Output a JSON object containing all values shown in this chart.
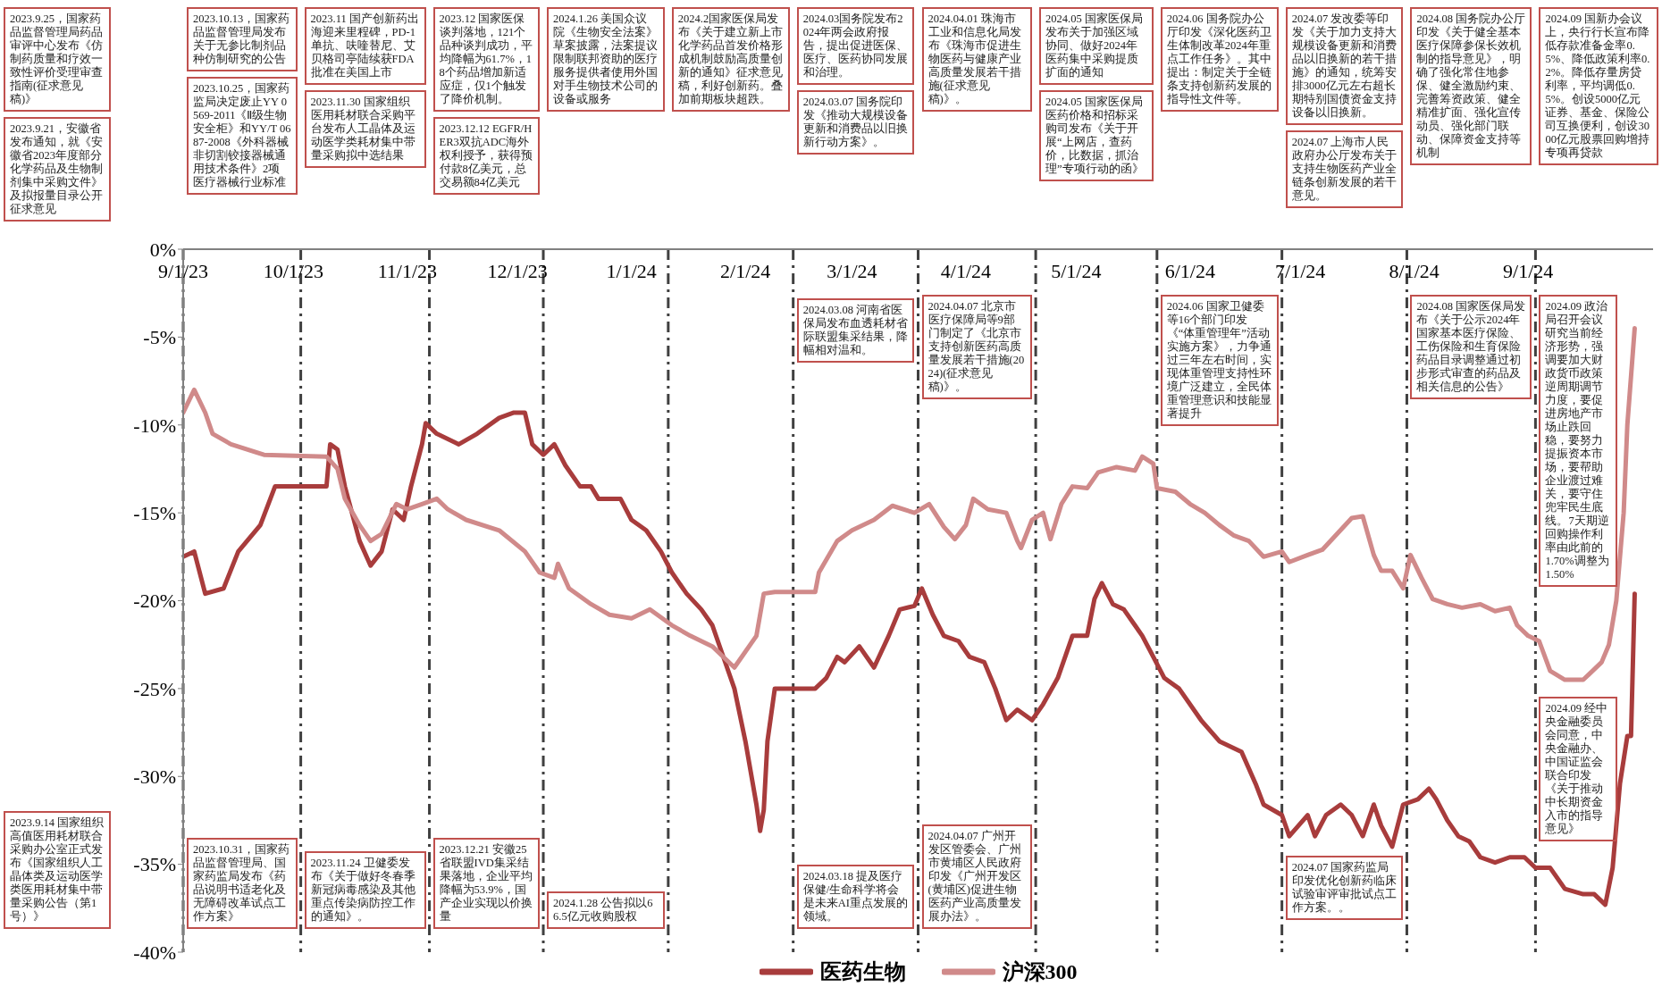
{
  "chart_data": {
    "type": "line",
    "xlim": [
      "2023-09-01",
      "2024-10-05"
    ],
    "xticks": [
      {
        "value": "2023-09-01",
        "label": "9/1/23"
      },
      {
        "value": "2023-10-01",
        "label": "10/1/23"
      },
      {
        "value": "2023-11-01",
        "label": "11/1/23"
      },
      {
        "value": "2023-12-01",
        "label": "12/1/23"
      },
      {
        "value": "2024-01-01",
        "label": "1/1/24"
      },
      {
        "value": "2024-02-01",
        "label": "2/1/24"
      },
      {
        "value": "2024-03-01",
        "label": "3/1/24"
      },
      {
        "value": "2024-04-01",
        "label": "4/1/24"
      },
      {
        "value": "2024-05-01",
        "label": "5/1/24"
      },
      {
        "value": "2024-06-01",
        "label": "6/1/24"
      },
      {
        "value": "2024-07-01",
        "label": "7/1/24"
      },
      {
        "value": "2024-08-01",
        "label": "8/1/24"
      },
      {
        "value": "2024-09-01",
        "label": "9/1/24"
      }
    ],
    "ylim": [
      -40,
      0
    ],
    "yticks": [
      {
        "value": -40,
        "label": "-40%"
      },
      {
        "value": -35,
        "label": "-35%"
      },
      {
        "value": -30,
        "label": "-30%"
      },
      {
        "value": -25,
        "label": "-25%"
      },
      {
        "value": -20,
        "label": "-20%"
      },
      {
        "value": -15,
        "label": "-15%"
      },
      {
        "value": -10,
        "label": "-10%"
      },
      {
        "value": -5,
        "label": "-5%"
      },
      {
        "value": 0,
        "label": "0%"
      }
    ],
    "grid": false,
    "legend": "bottom",
    "marker": "none",
    "line_style": "solid",
    "ref_lines": [
      {
        "axis": "x",
        "value": "2023-09-01",
        "color": "#404040",
        "line_style": "dashed"
      },
      {
        "axis": "x",
        "value": "2023-10-03",
        "color": "#404040",
        "line_style": "dashed"
      },
      {
        "axis": "x",
        "value": "2023-11-07",
        "color": "#404040",
        "line_style": "dashed"
      },
      {
        "axis": "x",
        "value": "2023-12-08",
        "color": "#404040",
        "line_style": "dashed"
      },
      {
        "axis": "x",
        "value": "2024-01-11",
        "color": "#404040",
        "line_style": "dashed"
      },
      {
        "axis": "x",
        "value": "2024-02-14",
        "color": "#404040",
        "line_style": "dashed"
      },
      {
        "axis": "x",
        "value": "2024-03-19",
        "color": "#404040",
        "line_style": "dashed"
      },
      {
        "axis": "x",
        "value": "2024-04-20",
        "color": "#404040",
        "line_style": "dashed"
      },
      {
        "axis": "x",
        "value": "2024-05-23",
        "color": "#404040",
        "line_style": "dashed"
      },
      {
        "axis": "x",
        "value": "2024-06-26",
        "color": "#404040",
        "line_style": "dashed"
      },
      {
        "axis": "x",
        "value": "2024-07-30",
        "color": "#404040",
        "line_style": "dashed"
      },
      {
        "axis": "x",
        "value": "2024-09-03",
        "color": "#404040",
        "line_style": "dashed"
      }
    ],
    "annotations": [
      "2023.9.25，国家药品监督管理局药品审评中心发布《仿制药质量和疗效一致性评价受理审查指南(征求意见稿)》",
      "2023.9.21，安徽省发布通知，就《安徽省2023年度部分化学药品及生物制剂集中采购文件》及拟报量目录公开征求意见",
      "2023.9.14 国家组织高值医用耗材联合采购办公室正式发布《国家组织人工晶体类及运动医学类医用耗材集中带量采购公告（第1号）》",
      "2023.10.13，国家药品监督管理局发布关于无参比制剂品种仿制研究的公告",
      "2023.10.25，国家药监局决定废止YY 0569-2011《Ⅱ级生物安全柜》和YY/T 0687-2008《外科器械非切割铰接器械通用技术条件》2项医疗器械行业标准",
      "2023.10.31，国家药品监督管理局、国家药监局发布《药品说明书适老化及无障碍改革试点工作方案》",
      "2023.11 国产创新药出海迎来里程碑，PD-1单抗、呋喹替尼、艾贝格司亭陆续获FDA批准在美国上市",
      "2023.11.30 国家组织医用耗材联合采购平台发布人工晶体及运动医学类耗材集中带量采购拟中选结果",
      "2023.11.24 卫健委发布《关于做好冬春季新冠病毒感染及其他重点传染病防控工作的通知》。",
      "2023.12 国家医保谈判落地，121个品种谈判成功，平均降幅为61.7%，18个药品增加新适应症，仅1个触发了降价机制。",
      "2023.12.12 EGFR/HER3双抗ADC海外权利授予，获得预付款8亿美元，总交易额84亿美元",
      "2023.12.21 安徽25省联盟IVD集采结果落地，企业平均降幅为53.9%，国产企业实现以价换量",
      "2024.1.26 美国众议院《生物安全法案》草案披露，法案提议限制联邦资助的医疗服务提供者使用外国对手生物技术公司的设备或服务",
      "2024.1.28 公告拟以66.5亿元收购股权",
      "2024.2国家医保局发布《关于建立新上市化学药品首发价格形成机制鼓励高质量创新的通知》征求意见稿，利好创新药。叠加前期板块超跌。",
      "2024.03国务院发布2024年两会政府报告，提出促进医保、医疗、医药协同发展和治理。",
      "2024.03.07 国务院印发《推动大规模设备更新和消费品以旧换新行动方案》。",
      "2024.03.08 河南省医保局发布血透耗材省际联盟集采结果，降幅相对温和。",
      "2024.03.18 提及医疗保健/生命科学将会是未来AI重点发展的领域。",
      "2024.04.01 珠海市工业和信息化局发布《珠海市促进生物医药与健康产业高质量发展若干措施(征求意见稿)》。",
      "2024.04.07 北京市医疗保障局等9部门制定了《北京市支持创新医药高质量发展若干措施(2024)(征求意见稿)》。",
      "2024.04.07 广州开发区管委会、广州市黄埔区人民政府印发《广州开发区(黄埔区)促进生物医药产业高质量发展办法》。",
      "2024.05 国家医保局发布关于加强区域协同、做好2024年医药集中采购提质扩面的通知",
      "2024.05 国家医保局医药价格和招标采购司发布《关于开展“上网店，查药价，比数据，抓治理”专项行动的函》",
      "2024.06 国务院办公厅印发《深化医药卫生体制改革2024年重点工作任务》。其中提出：制定关于全链条支持创新药发展的指导性文件等。",
      "2024.06 国家卫健委等16个部门印发《“体重管理年”活动实施方案》，力争通过三年左右时间，实现体重管理支持性环境广泛建立，全民体重管理意识和技能显著提升",
      "2024.07 发改委等印发《关于加力支持大规模设备更新和消费品以旧换新的若干措施》的通知，统筹安排3000亿元左右超长期特别国债资金支持设备以旧换新。",
      "2024.07 上海市人民政府办公厅发布关于支持生物医药产业全链条创新发展的若干意见。",
      "2024.07 国家药监局印发优化创新药临床试验审评审批试点工作方案。。",
      "2024.08 国务院办公厅印发《关于健全基本医疗保障参保长效机制的指导意见》，明确了强化常住地参保、健全激励约束、完善筹资政策、健全精准扩面、强化宣传动员、强化部门联动、保障资金支持等机制",
      "2024.08 国家医保局发布《关于公示2024年国家基本医疗保险、工伤保险和生育保险药品目录调整通过初步形式审查的药品及相关信息的公告》",
      "2024.09 国新办会议上，央行行长宣布降低存款准备金率0.5%、降低政策利率0.2%。降低存量房贷利率，平均调低0.5%。创设5000亿元证券、基金、保险公司互换便利，创设3000亿元股票回购增持专项再贷款",
      "2024.09 政治局召开会议研究当前经济形势，强调要加大财政货币政策逆周期调节力度，要促进房地产市场止跌回稳，要努力提振资本市场，要帮助企业渡过难关，要守住兜牢民生底线。7天期逆回购操作利率由此前的1.70%调整为1.50%",
      "2024.09 经中央金融委员会同意，中央金融办、中国证监会联合印发《关于推动中长期资金入市的指导意见》"
    ],
    "series": [
      {
        "name": "医药生物",
        "color": "#a83c3c",
        "x": [
          "2023-09-01",
          "2023-09-04",
          "2023-09-07",
          "2023-09-12",
          "2023-09-16",
          "2023-09-22",
          "2023-09-26",
          "2023-10-10",
          "2023-10-11",
          "2023-10-13",
          "2023-10-15",
          "2023-10-19",
          "2023-10-22",
          "2023-10-25",
          "2023-10-28",
          "2023-10-31",
          "2023-11-02",
          "2023-11-05",
          "2023-11-06",
          "2023-11-09",
          "2023-11-15",
          "2023-11-20",
          "2023-11-26",
          "2023-11-30",
          "2023-12-03",
          "2023-12-05",
          "2023-12-08",
          "2023-12-11",
          "2023-12-14",
          "2023-12-18",
          "2023-12-21",
          "2023-12-23",
          "2023-12-29",
          "2024-01-01",
          "2024-01-05",
          "2024-01-09",
          "2024-01-12",
          "2024-01-16",
          "2024-01-20",
          "2024-01-23",
          "2024-01-26",
          "2024-01-29",
          "2024-02-01",
          "2024-02-04",
          "2024-02-05",
          "2024-02-06",
          "2024-02-07",
          "2024-02-09",
          "2024-02-20",
          "2024-02-23",
          "2024-02-26",
          "2024-02-28",
          "2024-03-03",
          "2024-03-07",
          "2024-03-11",
          "2024-03-14",
          "2024-03-18",
          "2024-03-20",
          "2024-03-23",
          "2024-03-26",
          "2024-03-30",
          "2024-04-02",
          "2024-04-06",
          "2024-04-09",
          "2024-04-12",
          "2024-04-15",
          "2024-04-19",
          "2024-04-22",
          "2024-04-26",
          "2024-04-30",
          "2024-05-04",
          "2024-05-06",
          "2024-05-08",
          "2024-05-11",
          "2024-05-14",
          "2024-05-17",
          "2024-05-19",
          "2024-05-22",
          "2024-05-25",
          "2024-05-29",
          "2024-06-04",
          "2024-06-09",
          "2024-06-15",
          "2024-06-19",
          "2024-06-21",
          "2024-06-26",
          "2024-06-28",
          "2024-07-03",
          "2024-07-05",
          "2024-07-08",
          "2024-07-12",
          "2024-07-15",
          "2024-07-18",
          "2024-07-21",
          "2024-07-23",
          "2024-07-26",
          "2024-07-29",
          "2024-08-02",
          "2024-08-05",
          "2024-08-07",
          "2024-08-10",
          "2024-08-13",
          "2024-08-16",
          "2024-08-19",
          "2024-08-23",
          "2024-08-27",
          "2024-08-31",
          "2024-09-03",
          "2024-09-07",
          "2024-09-11",
          "2024-09-16",
          "2024-09-19",
          "2024-09-22",
          "2024-09-24",
          "2024-09-26",
          "2024-09-28",
          "2024-09-29",
          "2024-09-30"
        ],
        "values": [
          -17.5,
          -17.2,
          -19.6,
          -19.3,
          -17.2,
          -15.7,
          -13.5,
          -13.5,
          -11.1,
          -11.4,
          -13.5,
          -16.6,
          -18,
          -17.2,
          -14.8,
          -15.4,
          -13.5,
          -11.1,
          -9.9,
          -10.5,
          -11.1,
          -10.5,
          -9.6,
          -9.3,
          -9.3,
          -11.1,
          -11.7,
          -11.1,
          -12.3,
          -13.5,
          -13.5,
          -14.2,
          -14.2,
          -15.4,
          -16,
          -17.2,
          -18.4,
          -19.6,
          -20.5,
          -21.4,
          -23.2,
          -25,
          -28,
          -31.6,
          -33.1,
          -31.9,
          -28,
          -25,
          -25,
          -24.4,
          -23.2,
          -23.5,
          -22.6,
          -23.8,
          -22,
          -20.5,
          -20.3,
          -19.3,
          -20.8,
          -22,
          -22.3,
          -23.2,
          -23.5,
          -25,
          -26.8,
          -26.2,
          -26.8,
          -25.9,
          -24.4,
          -22,
          -22,
          -19.9,
          -19,
          -20.2,
          -20.5,
          -21.4,
          -22,
          -23.2,
          -24.4,
          -25,
          -26.8,
          -28,
          -28.6,
          -30.5,
          -31.6,
          -32.2,
          -33.4,
          -32.2,
          -33.4,
          -32.2,
          -31.6,
          -32.2,
          -33.4,
          -31.6,
          -32.8,
          -34,
          -31.6,
          -31.3,
          -30.7,
          -31.3,
          -32.5,
          -33.4,
          -33.7,
          -34.6,
          -34.9,
          -34.6,
          -34.6,
          -35.2,
          -35.2,
          -36.4,
          -36.7,
          -36.7,
          -37.3,
          -35.2,
          -30.4,
          -27.7,
          -27.7,
          -19.6
        ]
      },
      {
        "name": "沪深300",
        "color": "#d08a8a",
        "x": [
          "2023-09-01",
          "2023-09-04",
          "2023-09-07",
          "2023-09-09",
          "2023-09-14",
          "2023-09-23",
          "2023-10-10",
          "2023-10-13",
          "2023-10-15",
          "2023-10-19",
          "2023-10-22",
          "2023-10-25",
          "2023-10-29",
          "2023-11-01",
          "2023-11-05",
          "2023-11-09",
          "2023-11-12",
          "2023-11-17",
          "2023-11-26",
          "2023-12-03",
          "2023-12-07",
          "2023-12-11",
          "2023-12-12",
          "2023-12-15",
          "2023-12-21",
          "2023-12-26",
          "2024-01-01",
          "2024-01-06",
          "2024-01-12",
          "2024-01-17",
          "2024-01-23",
          "2024-01-26",
          "2024-01-29",
          "2024-02-04",
          "2024-02-06",
          "2024-02-09",
          "2024-02-20",
          "2024-02-21",
          "2024-02-26",
          "2024-03-01",
          "2024-03-07",
          "2024-03-12",
          "2024-03-18",
          "2024-03-22",
          "2024-03-26",
          "2024-03-29",
          "2024-04-01",
          "2024-04-03",
          "2024-04-07",
          "2024-04-12",
          "2024-04-15",
          "2024-04-16",
          "2024-04-19",
          "2024-04-22",
          "2024-04-24",
          "2024-04-27",
          "2024-04-30",
          "2024-05-04",
          "2024-05-07",
          "2024-05-12",
          "2024-05-17",
          "2024-05-19",
          "2024-05-22",
          "2024-05-23",
          "2024-05-28",
          "2024-06-01",
          "2024-06-05",
          "2024-06-09",
          "2024-06-13",
          "2024-06-17",
          "2024-06-21",
          "2024-06-26",
          "2024-06-28",
          "2024-07-03",
          "2024-07-07",
          "2024-07-11",
          "2024-07-15",
          "2024-07-18",
          "2024-07-21",
          "2024-07-23",
          "2024-07-26",
          "2024-07-29",
          "2024-07-31",
          "2024-08-03",
          "2024-08-06",
          "2024-08-10",
          "2024-08-14",
          "2024-08-19",
          "2024-08-23",
          "2024-08-27",
          "2024-08-29",
          "2024-09-01",
          "2024-09-04",
          "2024-09-07",
          "2024-09-11",
          "2024-09-16",
          "2024-09-21",
          "2024-09-23",
          "2024-09-25",
          "2024-09-27",
          "2024-09-28",
          "2024-09-30"
        ],
        "values": [
          -9.3,
          -8,
          -9.3,
          -10.5,
          -11.1,
          -11.7,
          -11.8,
          -12.5,
          -14.2,
          -15.7,
          -16.6,
          -16.2,
          -14.5,
          -14.8,
          -14.5,
          -14.2,
          -14.8,
          -15.4,
          -16,
          -17.2,
          -18.4,
          -18.7,
          -17.9,
          -19.3,
          -20.2,
          -20.8,
          -21,
          -20.5,
          -21.4,
          -22,
          -22.6,
          -23.2,
          -23.8,
          -22,
          -19.6,
          -19.5,
          -19.5,
          -18.4,
          -16.6,
          -16,
          -15.4,
          -14.6,
          -15,
          -14.5,
          -15.8,
          -16.5,
          -15.7,
          -14.2,
          -14.8,
          -15,
          -16.6,
          -17,
          -15.4,
          -15,
          -16.5,
          -14.5,
          -13.5,
          -13.6,
          -12.7,
          -12.4,
          -12.6,
          -11.8,
          -12.2,
          -13.6,
          -13.8,
          -14.5,
          -15,
          -15.7,
          -16.3,
          -16.6,
          -17.5,
          -17.2,
          -17.8,
          -17.4,
          -17.1,
          -16.2,
          -15.3,
          -15.2,
          -17.4,
          -18.3,
          -18.3,
          -19.3,
          -17.4,
          -18.7,
          -19.9,
          -20.2,
          -20.4,
          -20.2,
          -20.6,
          -20.4,
          -21.4,
          -22,
          -22.3,
          -24,
          -24.5,
          -24.5,
          -23.5,
          -22.5,
          -20,
          -15,
          -10,
          -4.5
        ]
      }
    ]
  }
}
